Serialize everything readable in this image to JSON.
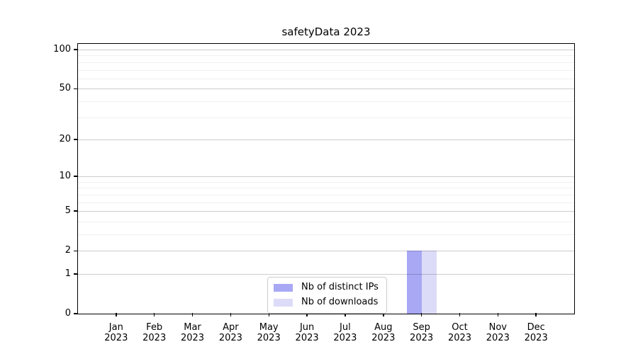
{
  "chart_data": {
    "type": "bar",
    "title": "safetyData 2023",
    "categories": [
      "Jan",
      "Feb",
      "Mar",
      "Apr",
      "May",
      "Jun",
      "Jul",
      "Aug",
      "Sep",
      "Oct",
      "Nov",
      "Dec"
    ],
    "year_label": "2023",
    "series": [
      {
        "name": "Nb of distinct IPs",
        "color": "#a8a8f5",
        "values": [
          0,
          0,
          0,
          0,
          0,
          0,
          0,
          0,
          2,
          0,
          0,
          0
        ]
      },
      {
        "name": "Nb of downloads",
        "color": "#dcdcf8",
        "values": [
          0,
          0,
          0,
          0,
          0,
          0,
          0,
          0,
          2,
          0,
          0,
          0
        ]
      }
    ],
    "yaxis": {
      "scale": "log10(value+1)",
      "major_ticks": [
        0,
        1,
        2,
        5,
        10,
        20,
        50,
        100
      ],
      "minor_ticks": [
        3,
        4,
        6,
        7,
        8,
        9,
        30,
        40,
        60,
        70,
        80,
        90
      ],
      "ylim": [
        0,
        110.5
      ]
    },
    "xlabel": "",
    "ylabel": "",
    "grid": true,
    "legend_position": "bottom-center"
  }
}
